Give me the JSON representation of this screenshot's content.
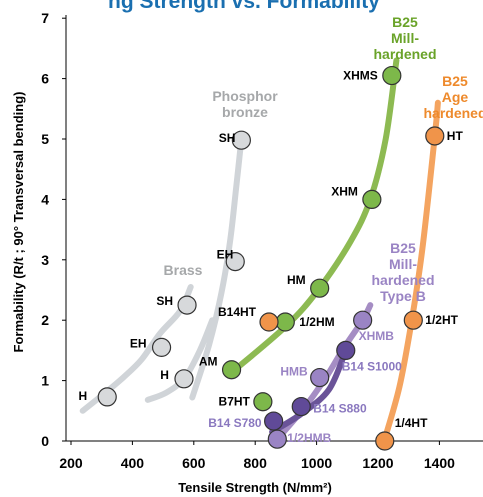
{
  "chart_data": {
    "type": "scatter",
    "title": "ng Strength vs. Formability",
    "xlabel": "Tensile Strength (N/mm²)",
    "ylabel": "Formability (R/t ; 90° Transversal bending)",
    "xlim": [
      200,
      1450
    ],
    "ylim": [
      0,
      7
    ],
    "xticks": [
      "200",
      "400",
      "600",
      "800",
      "1000",
      "1200",
      "1400"
    ],
    "yticks": [
      "0",
      "1",
      "2",
      "3",
      "4",
      "5",
      "6",
      "7"
    ],
    "grid": false,
    "series": [
      {
        "name": "Phosphor bronze",
        "label_lines": [
          "Phosphor",
          "bronze"
        ],
        "color": "#d0d4d8",
        "marker_fill": "#d7d9db",
        "label_color": "#a6a8aa",
        "curve": [
          [
            595,
            0.72
          ],
          [
            650,
            1.6
          ],
          [
            690,
            2.45
          ],
          [
            718,
            3.3
          ],
          [
            738,
            4.2
          ],
          [
            755,
            5.0
          ]
        ],
        "points": [
          {
            "x": 735,
            "y": 2.97,
            "label": "EH"
          },
          {
            "x": 755,
            "y": 4.98,
            "label": "SH"
          }
        ]
      },
      {
        "name": "Brass",
        "label_lines": [
          "Brass"
        ],
        "color": "#d0d4d8",
        "marker_fill": "#d7d9db",
        "label_color": "#a6a8aa",
        "curve_a": [
          [
            238,
            0.5
          ],
          [
            300,
            0.75
          ],
          [
            370,
            1.05
          ],
          [
            430,
            1.35
          ],
          [
            490,
            1.78
          ],
          [
            555,
            2.15
          ],
          [
            590,
            2.55
          ]
        ],
        "curve_b": [
          [
            450,
            0.68
          ],
          [
            510,
            0.8
          ],
          [
            570,
            1.04
          ],
          [
            620,
            1.5
          ],
          [
            660,
            2.0
          ]
        ],
        "points": [
          {
            "x": 318,
            "y": 0.73,
            "label": "H"
          },
          {
            "x": 568,
            "y": 1.03,
            "label": "H"
          },
          {
            "x": 495,
            "y": 1.55,
            "label": "EH"
          },
          {
            "x": 578,
            "y": 2.25,
            "label": "SH"
          }
        ]
      },
      {
        "name": "B25 Mill-hardened",
        "label_lines": [
          "B25",
          "Mill-",
          "hardened"
        ],
        "color": "#8dba52",
        "marker_fill": "#7db84a",
        "label_color": "#6aa329",
        "curve": [
          [
            720,
            1.12
          ],
          [
            900,
            1.9
          ],
          [
            1005,
            2.5
          ],
          [
            1110,
            3.3
          ],
          [
            1175,
            4.0
          ],
          [
            1225,
            5.0
          ],
          [
            1260,
            6.3
          ]
        ],
        "points": [
          {
            "x": 723,
            "y": 1.18,
            "label": "AM"
          },
          {
            "x": 898,
            "y": 1.97,
            "label": "1/2HM"
          },
          {
            "x": 1010,
            "y": 2.53,
            "label": "HM"
          },
          {
            "x": 1180,
            "y": 4.0,
            "label": "XHM"
          },
          {
            "x": 1245,
            "y": 6.05,
            "label": "XHMS"
          }
        ]
      },
      {
        "name": "B25 Age hardened",
        "label_lines": [
          "B25",
          "Age",
          "hardened"
        ],
        "color": "#f4a460",
        "marker_fill": "#f0944a",
        "label_color": "#ee8a2c",
        "curve": [
          [
            1220,
            0.0
          ],
          [
            1270,
            0.9
          ],
          [
            1310,
            2.0
          ],
          [
            1345,
            3.2
          ],
          [
            1385,
            5.05
          ],
          [
            1395,
            5.6
          ]
        ],
        "points": [
          {
            "x": 1222,
            "y": 0.0,
            "label": "1/4HT"
          },
          {
            "x": 1315,
            "y": 2.0,
            "label": "1/2HT"
          },
          {
            "x": 1385,
            "y": 5.05,
            "label": "HT"
          }
        ]
      },
      {
        "name": "B25 Mill-hardened Type B",
        "label_lines": [
          "B25",
          "Mill-",
          "hardened",
          "Type B"
        ],
        "color": "#a58dc4",
        "marker_fill": "#9a84c4",
        "label_color": "#9a84c4",
        "curve": [
          [
            872,
            0.03
          ],
          [
            960,
            0.55
          ],
          [
            1030,
            1.05
          ],
          [
            1090,
            1.55
          ],
          [
            1150,
            2.0
          ],
          [
            1175,
            2.25
          ]
        ],
        "points": [
          {
            "x": 872,
            "y": 0.03,
            "label": "1/2HMB"
          },
          {
            "x": 1010,
            "y": 1.05,
            "label": "HMB"
          },
          {
            "x": 1150,
            "y": 2.0,
            "label": "XHMB"
          }
        ]
      },
      {
        "name": "B14",
        "label_lines": [],
        "color": "#6a5398",
        "marker_fill": "#604a98",
        "label_color": "#8a78bf",
        "curve": [
          [
            855,
            0.15
          ],
          [
            950,
            0.45
          ],
          [
            1040,
            0.85
          ],
          [
            1095,
            1.5
          ]
        ],
        "points": [
          {
            "x": 860,
            "y": 0.33,
            "label": "B14 S780"
          },
          {
            "x": 950,
            "y": 0.57,
            "label": "B14 S880"
          },
          {
            "x": 1095,
            "y": 1.5,
            "label": "B14 S1000"
          }
        ]
      },
      {
        "name": "B7",
        "label_lines": [],
        "color": "#7db84a",
        "marker_fill": "#7db84a",
        "label_color": "#000000",
        "curve": [],
        "points": [
          {
            "x": 825,
            "y": 0.65,
            "label": "B7HT"
          }
        ]
      },
      {
        "name": "B14",
        "label_lines": [],
        "color": "#f0944a",
        "marker_fill": "#f0944a",
        "label_color": "#000000",
        "curve": [],
        "points": [
          {
            "x": 845,
            "y": 1.97,
            "label": "B14HT"
          }
        ]
      }
    ]
  }
}
